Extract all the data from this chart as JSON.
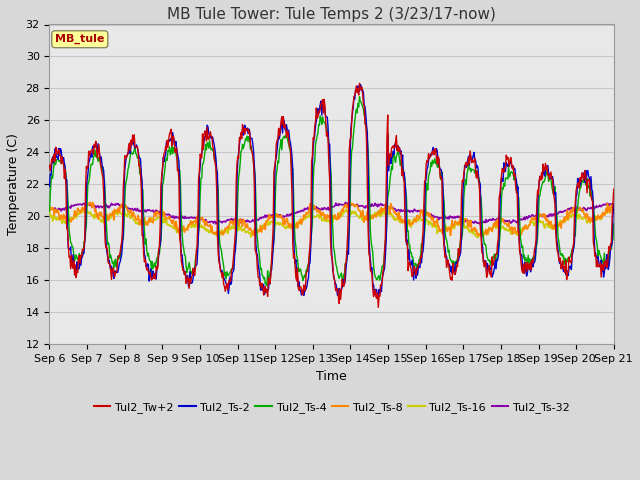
{
  "title": "MB Tule Tower: Tule Temps 2 (3/23/17-now)",
  "xlabel": "Time",
  "ylabel": "Temperature (C)",
  "ylim": [
    12,
    32
  ],
  "yticks": [
    12,
    14,
    16,
    18,
    20,
    22,
    24,
    26,
    28,
    30,
    32
  ],
  "x_labels": [
    "Sep 6",
    "Sep 7",
    "Sep 8",
    "Sep 9",
    "Sep 10",
    "Sep 11",
    "Sep 12",
    "Sep 13",
    "Sep 14",
    "Sep 15",
    "Sep 16",
    "Sep 17",
    "Sep 18",
    "Sep 19",
    "Sep 20",
    "Sep 21"
  ],
  "legend_label": "MB_tule",
  "series_colors": {
    "Tul2_Tw+2": "#cc0000",
    "Tul2_Ts-2": "#0000cc",
    "Tul2_Ts-4": "#00aa00",
    "Tul2_Ts-8": "#ff8800",
    "Tul2_Ts-16": "#cccc00",
    "Tul2_Ts-32": "#8800aa"
  },
  "background_color": "#d8d8d8",
  "plot_background": "#e8e8e8",
  "grid_color": "#c8c8c8",
  "title_fontsize": 11,
  "axis_fontsize": 9,
  "tick_fontsize": 8
}
